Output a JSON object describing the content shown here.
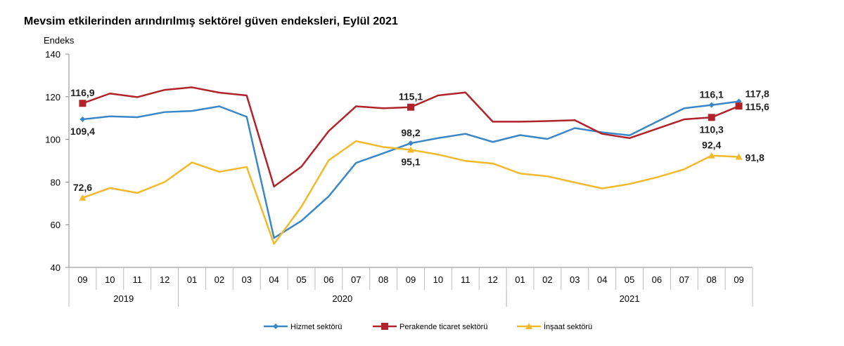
{
  "chart_data": {
    "type": "line",
    "title": "Mevsim etkilerinden arındırılmış sektörel güven endeksleri, Eylül 2021",
    "ylabel": "Endeks",
    "ylim": [
      40,
      140
    ],
    "yticks": [
      40,
      60,
      80,
      100,
      120,
      140
    ],
    "grid": false,
    "legend_position": "bottom",
    "categories": [
      "09",
      "10",
      "11",
      "12",
      "01",
      "02",
      "03",
      "04",
      "05",
      "06",
      "07",
      "08",
      "09",
      "10",
      "11",
      "12",
      "01",
      "02",
      "03",
      "04",
      "05",
      "06",
      "07",
      "08",
      "09"
    ],
    "years": [
      {
        "label": "2019",
        "start": 0,
        "end": 3
      },
      {
        "label": "2020",
        "start": 4,
        "end": 15
      },
      {
        "label": "2021",
        "start": 16,
        "end": 24
      }
    ],
    "series": [
      {
        "name": "Hizmet sektörü",
        "color": "#3a87c8",
        "marker": "diamond",
        "values": [
          109.4,
          110.8,
          110.4,
          112.8,
          113.3,
          115.5,
          110.6,
          53.8,
          61.8,
          73.3,
          89.0,
          93.5,
          98.2,
          100.6,
          102.6,
          98.8,
          102.0,
          100.2,
          105.3,
          103.3,
          101.9,
          108.3,
          114.6,
          116.1,
          117.8
        ],
        "labels": [
          {
            "index": 0,
            "text": "109,4",
            "pos": "below"
          },
          {
            "index": 12,
            "text": "98,2",
            "pos": "above"
          },
          {
            "index": 23,
            "text": "116,1",
            "pos": "above"
          },
          {
            "index": 24,
            "text": "117,8",
            "pos": "right-up"
          }
        ]
      },
      {
        "name": "Perakende ticaret sektörü",
        "color": "#b0232a",
        "marker": "square",
        "values": [
          116.9,
          121.5,
          119.8,
          123.2,
          124.4,
          121.9,
          120.6,
          77.9,
          87.2,
          103.9,
          115.5,
          114.6,
          115.1,
          120.6,
          122.0,
          108.3,
          108.3,
          108.6,
          109.0,
          102.6,
          100.6,
          105.0,
          109.4,
          110.3,
          115.6
        ],
        "labels": [
          {
            "index": 0,
            "text": "116,9",
            "pos": "above"
          },
          {
            "index": 12,
            "text": "115,1",
            "pos": "above"
          },
          {
            "index": 23,
            "text": "110,3",
            "pos": "below"
          },
          {
            "index": 24,
            "text": "115,6",
            "pos": "right"
          }
        ]
      },
      {
        "name": "İnşaat sektörü",
        "color": "#f2b92c",
        "marker": "triangle",
        "values": [
          72.6,
          77.2,
          74.9,
          80.0,
          89.2,
          84.8,
          87.1,
          51.0,
          68.4,
          90.2,
          99.2,
          96.4,
          95.1,
          92.9,
          89.9,
          88.7,
          84.0,
          82.7,
          79.8,
          77.0,
          79.1,
          82.2,
          86.0,
          92.4,
          91.8
        ],
        "labels": [
          {
            "index": 0,
            "text": "72,6",
            "pos": "above"
          },
          {
            "index": 12,
            "text": "95,1",
            "pos": "below"
          },
          {
            "index": 23,
            "text": "92,4",
            "pos": "above"
          },
          {
            "index": 24,
            "text": "91,8",
            "pos": "right"
          }
        ]
      }
    ]
  }
}
